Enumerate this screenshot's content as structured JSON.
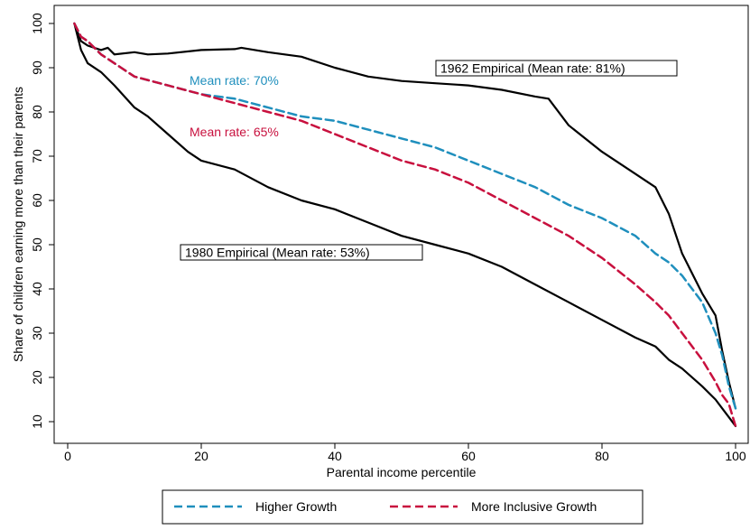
{
  "chart_data": {
    "type": "line",
    "title": "",
    "xlabel": "Parental income percentile",
    "ylabel": "Share of children earning more than their parents",
    "xlim": [
      0,
      100
    ],
    "ylim": [
      10,
      100
    ],
    "xticks": [
      0,
      20,
      40,
      60,
      80,
      100
    ],
    "yticks": [
      10,
      20,
      30,
      40,
      50,
      60,
      70,
      80,
      90,
      100
    ],
    "grid": false,
    "legend_position": "bottom",
    "legend_items": [
      {
        "label": "Higher Growth",
        "color": "#1f8fbd",
        "style": "dashed"
      },
      {
        "label": "More Inclusive Growth",
        "color": "#c8103e",
        "style": "dashed"
      }
    ],
    "annotations": {
      "boxed_1962": "1962 Empirical (Mean rate: 81%)",
      "boxed_1980": "1980 Empirical (Mean rate: 53%)",
      "mean_higher": "Mean rate: 70%",
      "mean_inclusive": "Mean rate: 65%"
    },
    "series": [
      {
        "name": "1962 Empirical",
        "color": "#000000",
        "style": "solid",
        "x": [
          1,
          2,
          3,
          5,
          6,
          7,
          10,
          12,
          15,
          20,
          25,
          26,
          30,
          35,
          40,
          45,
          50,
          55,
          60,
          65,
          70,
          72,
          75,
          80,
          85,
          88,
          90,
          92,
          95,
          97,
          98,
          99,
          100
        ],
        "y": [
          100,
          96,
          95,
          94,
          94.5,
          93,
          93.5,
          93,
          93.2,
          94,
          94.2,
          94.5,
          93.5,
          92.5,
          90,
          88,
          87,
          86.5,
          86,
          85,
          83.5,
          83,
          77,
          71,
          66,
          63,
          57,
          48,
          39,
          34,
          26,
          19,
          13
        ]
      },
      {
        "name": "1980 Empirical",
        "color": "#000000",
        "style": "solid",
        "x": [
          1,
          2,
          3,
          5,
          7,
          10,
          12,
          15,
          18,
          20,
          25,
          30,
          35,
          40,
          45,
          50,
          55,
          60,
          65,
          70,
          75,
          80,
          85,
          88,
          90,
          92,
          95,
          97,
          98,
          99,
          100
        ],
        "y": [
          100,
          94,
          91,
          89,
          86,
          81,
          79,
          75,
          71,
          69,
          67,
          63,
          60,
          58,
          55,
          52,
          50,
          48,
          45,
          41,
          37,
          33,
          29,
          27,
          24,
          22,
          18,
          15,
          13,
          11,
          9
        ]
      },
      {
        "name": "Higher Growth",
        "color": "#1f8fbd",
        "style": "dashed",
        "x": [
          1,
          2,
          3,
          5,
          8,
          10,
          15,
          20,
          25,
          30,
          35,
          40,
          45,
          50,
          55,
          60,
          65,
          70,
          75,
          80,
          85,
          88,
          90,
          92,
          95,
          97,
          98,
          99,
          100
        ],
        "y": [
          100,
          97,
          96,
          93,
          90,
          88,
          86,
          84,
          83,
          81,
          79,
          78,
          76,
          74,
          72,
          69,
          66,
          63,
          59,
          56,
          52,
          48,
          46,
          43,
          37,
          30,
          25,
          18,
          13
        ]
      },
      {
        "name": "More Inclusive Growth",
        "color": "#c8103e",
        "style": "dashed",
        "x": [
          1,
          2,
          3,
          5,
          8,
          10,
          15,
          20,
          25,
          30,
          35,
          40,
          45,
          50,
          55,
          60,
          65,
          70,
          75,
          80,
          85,
          88,
          90,
          92,
          95,
          97,
          98,
          99,
          100
        ],
        "y": [
          100,
          97,
          96,
          93,
          90,
          88,
          86,
          84,
          82,
          80,
          78,
          75,
          72,
          69,
          67,
          64,
          60,
          56,
          52,
          47,
          41,
          37,
          34,
          30,
          24,
          19,
          16,
          14,
          9
        ]
      }
    ]
  }
}
